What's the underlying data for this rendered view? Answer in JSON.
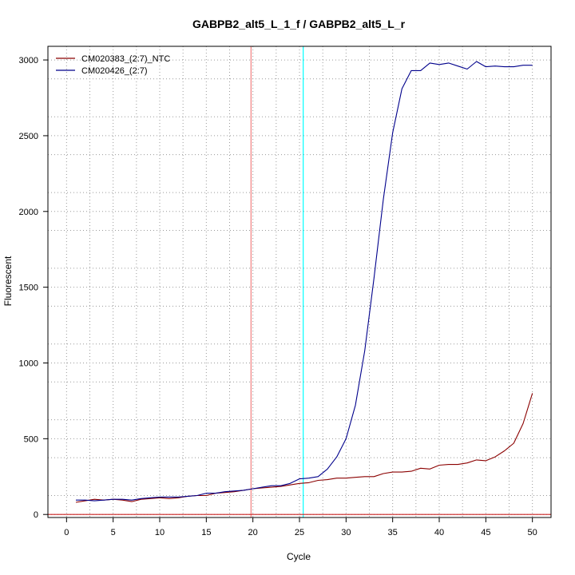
{
  "chart_data": {
    "type": "line",
    "title": "GABPB2_alt5_L_1_f / GABPB2_alt5_L_r",
    "xlabel": "Cycle",
    "ylabel": "Fluorescent",
    "xlim": [
      -2,
      52
    ],
    "ylim": [
      -20,
      3090
    ],
    "x_ticks": [
      0,
      5,
      10,
      15,
      20,
      25,
      30,
      35,
      40,
      45,
      50
    ],
    "y_ticks": [
      0,
      500,
      1000,
      1500,
      2000,
      2500,
      3000
    ],
    "x_grid": [
      2.5,
      7.5,
      12.5,
      17.5,
      22.5,
      27.5,
      32.5,
      37.5,
      42.5,
      47.5
    ],
    "y_grid": [
      125,
      375,
      625,
      875,
      1125,
      1375,
      1625,
      1875,
      2125,
      2375,
      2625,
      2875
    ],
    "grid": true,
    "legend_position": "top-left",
    "vlines": [
      {
        "x": 19.8,
        "color": "#f08080"
      },
      {
        "x": 25.4,
        "color": "#00ffff"
      }
    ],
    "hlines": [
      {
        "y": 0,
        "color": "#cc2222"
      }
    ],
    "x": [
      1,
      2,
      3,
      4,
      5,
      6,
      7,
      8,
      9,
      10,
      11,
      12,
      13,
      14,
      15,
      16,
      17,
      18,
      19,
      20,
      21,
      22,
      23,
      24,
      25,
      26,
      27,
      28,
      29,
      30,
      31,
      32,
      33,
      34,
      35,
      36,
      37,
      38,
      39,
      40,
      41,
      42,
      43,
      44,
      45,
      46,
      47,
      48,
      49,
      50
    ],
    "series": [
      {
        "name": "CM020383_(2:7)_NTC",
        "color": "#8b0000",
        "values": [
          80,
          90,
          100,
          95,
          100,
          95,
          85,
          100,
          105,
          110,
          105,
          110,
          120,
          125,
          125,
          140,
          145,
          150,
          160,
          170,
          175,
          180,
          185,
          195,
          205,
          210,
          225,
          230,
          240,
          240,
          245,
          250,
          250,
          270,
          280,
          280,
          285,
          305,
          300,
          325,
          330,
          330,
          340,
          360,
          355,
          380,
          420,
          470,
          600,
          800
        ]
      },
      {
        "name": "CM020426_(2:7)",
        "color": "#00008b",
        "values": [
          95,
          95,
          90,
          95,
          100,
          100,
          95,
          105,
          110,
          115,
          115,
          115,
          120,
          125,
          140,
          140,
          150,
          155,
          160,
          170,
          180,
          190,
          190,
          205,
          235,
          240,
          250,
          300,
          380,
          500,
          720,
          1080,
          1560,
          2080,
          2520,
          2810,
          2930,
          2930,
          2980,
          2970,
          2980,
          2960,
          2940,
          2990,
          2955,
          2960,
          2955,
          2955,
          2965,
          2965
        ]
      }
    ]
  }
}
